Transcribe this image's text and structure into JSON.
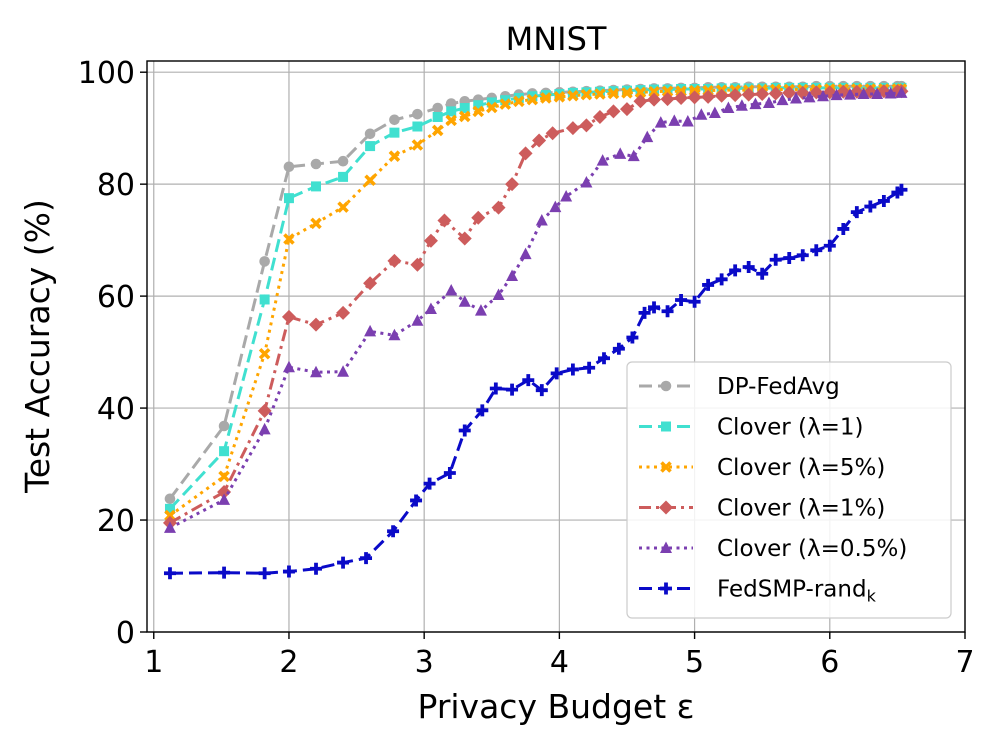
{
  "chart_data": {
    "type": "line",
    "title": "MNIST",
    "xlabel": "Privacy Budget ε",
    "ylabel": "Test Accuracy (%)",
    "xlim": [
      0.95,
      7.0
    ],
    "ylim": [
      0,
      102
    ],
    "xticks": [
      "1",
      "2",
      "3",
      "4",
      "5",
      "6",
      "7"
    ],
    "yticks": [
      "0",
      "20",
      "40",
      "60",
      "80",
      "100"
    ],
    "grid": true,
    "legend_position": "lower-right",
    "series": [
      {
        "name": "DP-FedAvg",
        "color": "#a9a9a9",
        "marker": "circle",
        "dash": "dashed",
        "x": [
          1.12,
          1.52,
          1.82,
          2.0,
          2.2,
          2.4,
          2.6,
          2.78,
          2.95,
          3.1,
          3.2,
          3.3,
          3.4,
          3.5,
          3.6,
          3.7,
          3.8,
          3.9,
          4.0,
          4.1,
          4.2,
          4.3,
          4.4,
          4.5,
          4.6,
          4.7,
          4.8,
          4.9,
          5.0,
          5.1,
          5.2,
          5.3,
          5.4,
          5.5,
          5.6,
          5.7,
          5.8,
          5.9,
          6.0,
          6.1,
          6.2,
          6.3,
          6.4,
          6.5,
          6.53
        ],
        "y": [
          23.8,
          36.8,
          66.2,
          83.1,
          83.6,
          84.1,
          89.0,
          91.5,
          92.5,
          93.6,
          94.4,
          94.8,
          95.1,
          95.4,
          95.7,
          96.0,
          96.2,
          96.3,
          96.4,
          96.5,
          96.6,
          96.7,
          96.8,
          96.9,
          97.0,
          97.1,
          97.1,
          97.2,
          97.2,
          97.3,
          97.3,
          97.3,
          97.4,
          97.4,
          97.4,
          97.4,
          97.4,
          97.5,
          97.5,
          97.5,
          97.5,
          97.5,
          97.5,
          97.5,
          97.5
        ]
      },
      {
        "name": "Clover (λ=1)",
        "color": "#40e0d0",
        "marker": "square",
        "dash": "dashed",
        "x": [
          1.12,
          1.52,
          1.82,
          2.0,
          2.2,
          2.4,
          2.6,
          2.78,
          2.95,
          3.1,
          3.2,
          3.3,
          3.4,
          3.5,
          3.6,
          3.7,
          3.8,
          3.9,
          4.0,
          4.1,
          4.2,
          4.3,
          4.4,
          4.5,
          4.6,
          4.7,
          4.8,
          4.9,
          5.0,
          5.1,
          5.2,
          5.3,
          5.4,
          5.5,
          5.6,
          5.7,
          5.8,
          5.9,
          6.0,
          6.1,
          6.2,
          6.3,
          6.4,
          6.5,
          6.53
        ],
        "y": [
          22.0,
          32.3,
          59.4,
          77.5,
          79.6,
          81.3,
          86.8,
          89.2,
          90.3,
          92.0,
          93.0,
          93.6,
          94.1,
          94.6,
          95.0,
          95.4,
          95.7,
          95.9,
          96.1,
          96.3,
          96.4,
          96.5,
          96.6,
          96.7,
          96.8,
          96.9,
          96.9,
          97.0,
          97.0,
          97.0,
          97.1,
          97.1,
          97.1,
          97.1,
          97.2,
          97.2,
          97.2,
          97.2,
          97.2,
          97.2,
          97.2,
          97.2,
          97.2,
          97.2,
          97.2
        ]
      },
      {
        "name": "Clover (λ=5%)",
        "color": "#ffa500",
        "marker": "x",
        "dash": "dotted",
        "x": [
          1.12,
          1.52,
          1.82,
          2.0,
          2.2,
          2.4,
          2.6,
          2.78,
          2.95,
          3.1,
          3.2,
          3.3,
          3.4,
          3.5,
          3.6,
          3.7,
          3.8,
          3.9,
          4.0,
          4.1,
          4.2,
          4.3,
          4.4,
          4.5,
          4.6,
          4.7,
          4.8,
          4.9,
          5.0,
          5.1,
          5.2,
          5.3,
          5.4,
          5.5,
          5.6,
          5.7,
          5.8,
          5.9,
          6.0,
          6.1,
          6.2,
          6.3,
          6.4,
          6.5,
          6.53
        ],
        "y": [
          20.8,
          27.8,
          49.7,
          70.2,
          73.0,
          75.9,
          80.7,
          85.0,
          87.0,
          89.6,
          91.4,
          92.1,
          93.0,
          93.7,
          94.3,
          94.8,
          95.1,
          95.4,
          95.6,
          95.8,
          96.0,
          96.1,
          96.2,
          96.3,
          96.4,
          96.5,
          96.6,
          96.6,
          96.7,
          96.7,
          96.8,
          96.8,
          96.8,
          96.9,
          96.9,
          96.9,
          96.9,
          96.9,
          97.0,
          97.0,
          97.0,
          97.0,
          97.0,
          97.0,
          97.0
        ]
      },
      {
        "name": "Clover (λ=1%)",
        "color": "#cd5c5c",
        "marker": "diamond",
        "dash": "dashdot",
        "x": [
          1.12,
          1.52,
          1.82,
          2.0,
          2.2,
          2.4,
          2.6,
          2.78,
          2.95,
          3.05,
          3.15,
          3.3,
          3.4,
          3.55,
          3.65,
          3.75,
          3.85,
          3.95,
          4.1,
          4.2,
          4.3,
          4.4,
          4.5,
          4.6,
          4.7,
          4.8,
          4.9,
          5.0,
          5.1,
          5.2,
          5.3,
          5.4,
          5.5,
          5.6,
          5.7,
          5.8,
          5.9,
          6.0,
          6.1,
          6.2,
          6.3,
          6.4,
          6.5,
          6.53
        ],
        "y": [
          19.5,
          25.0,
          39.5,
          56.3,
          54.9,
          57.0,
          62.3,
          66.3,
          65.6,
          69.9,
          73.5,
          70.3,
          74.0,
          75.8,
          80.0,
          85.5,
          87.8,
          89.1,
          90.0,
          90.5,
          92.0,
          93.0,
          93.4,
          94.8,
          95.1,
          95.2,
          95.4,
          95.5,
          95.6,
          95.8,
          95.9,
          96.0,
          96.1,
          96.2,
          96.3,
          96.3,
          96.4,
          96.4,
          96.5,
          96.5,
          96.5,
          96.6,
          96.6,
          96.6
        ]
      },
      {
        "name": "Clover (λ=0.5%)",
        "color": "#7b3fb0",
        "marker": "triangle",
        "dash": "dotted",
        "x": [
          1.12,
          1.52,
          1.82,
          2.0,
          2.2,
          2.4,
          2.6,
          2.78,
          2.95,
          3.05,
          3.2,
          3.3,
          3.42,
          3.55,
          3.65,
          3.75,
          3.87,
          3.97,
          4.05,
          4.2,
          4.32,
          4.45,
          4.55,
          4.65,
          4.75,
          4.85,
          4.95,
          5.05,
          5.15,
          5.25,
          5.35,
          5.45,
          5.55,
          5.65,
          5.75,
          5.85,
          5.95,
          6.05,
          6.15,
          6.25,
          6.35,
          6.45,
          6.53
        ],
        "y": [
          18.6,
          23.6,
          36.2,
          47.3,
          46.4,
          46.5,
          53.7,
          53.0,
          55.6,
          57.7,
          61.0,
          59.0,
          57.4,
          60.2,
          63.6,
          67.5,
          73.5,
          75.9,
          77.8,
          80.3,
          84.2,
          85.4,
          85.0,
          88.4,
          91.0,
          91.3,
          91.2,
          92.4,
          92.7,
          93.6,
          94.0,
          94.3,
          94.5,
          95.0,
          95.3,
          95.5,
          95.7,
          95.9,
          96.0,
          96.1,
          96.1,
          96.2,
          96.3
        ]
      },
      {
        "name": "FedSMP-rand_k",
        "color": "#0a0ac8",
        "marker": "plus",
        "dash": "dashed",
        "x": [
          1.12,
          1.52,
          1.82,
          2.0,
          2.2,
          2.4,
          2.57,
          2.77,
          2.94,
          3.04,
          3.19,
          3.3,
          3.43,
          3.53,
          3.65,
          3.77,
          3.87,
          3.98,
          4.1,
          4.22,
          4.33,
          4.44,
          4.54,
          4.63,
          4.7,
          4.8,
          4.9,
          5.0,
          5.1,
          5.2,
          5.3,
          5.4,
          5.5,
          5.6,
          5.7,
          5.8,
          5.9,
          6.0,
          6.1,
          6.2,
          6.3,
          6.4,
          6.5,
          6.53
        ],
        "y": [
          10.5,
          10.6,
          10.5,
          10.8,
          11.3,
          12.4,
          13.2,
          18.0,
          23.5,
          26.5,
          28.4,
          36.0,
          39.6,
          43.5,
          43.3,
          45.0,
          43.2,
          46.2,
          46.9,
          47.2,
          48.9,
          50.6,
          52.6,
          57.0,
          58.0,
          57.3,
          59.3,
          59.0,
          62.0,
          63.0,
          64.6,
          65.2,
          64.0,
          66.5,
          66.8,
          67.3,
          68.2,
          69.0,
          72.0,
          75.0,
          76.0,
          77.0,
          78.5,
          79.0
        ]
      }
    ]
  }
}
